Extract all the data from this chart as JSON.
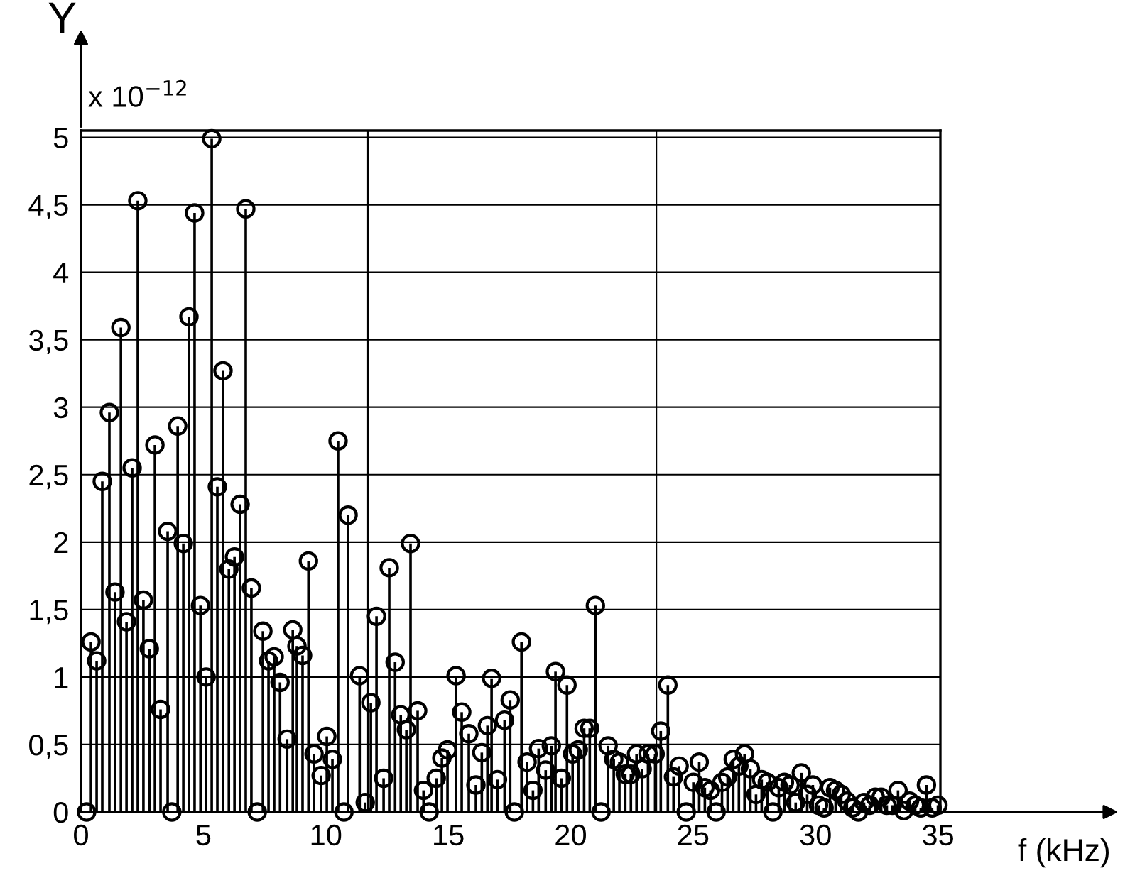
{
  "chart_data": {
    "type": "lollipop",
    "xlabel": "f (kHz)",
    "ylabel": "Y",
    "annotations": [
      "x 10$^{−12}$"
    ],
    "x": [
      0.23,
      0.41,
      0.64,
      0.87,
      1.16,
      1.39,
      1.63,
      1.86,
      2.09,
      2.32,
      2.55,
      2.79,
      3.02,
      3.25,
      3.54,
      3.71,
      3.95,
      4.18,
      4.41,
      4.64,
      4.88,
      5.11,
      5.34,
      5.57,
      5.8,
      6.04,
      6.27,
      6.5,
      6.73,
      6.96,
      7.2,
      7.43,
      7.66,
      7.89,
      8.13,
      8.42,
      8.65,
      8.82,
      9.05,
      9.29,
      9.52,
      9.81,
      10.04,
      10.27,
      10.5,
      10.74,
      10.91,
      11.38,
      11.61,
      11.84,
      12.07,
      12.36,
      12.59,
      12.83,
      13.06,
      13.29,
      13.46,
      13.75,
      13.99,
      14.22,
      14.51,
      14.74,
      14.97,
      15.32,
      15.55,
      15.84,
      16.13,
      16.37,
      16.6,
      16.77,
      17.01,
      17.3,
      17.53,
      17.7,
      17.99,
      18.22,
      18.46,
      18.69,
      18.98,
      19.21,
      19.38,
      19.62,
      19.85,
      20.08,
      20.31,
      20.55,
      20.78,
      21.01,
      21.24,
      21.53,
      21.76,
      21.99,
      22.23,
      22.46,
      22.69,
      22.92,
      23.16,
      23.45,
      23.68,
      23.97,
      24.2,
      24.43,
      24.72,
      25.01,
      25.25,
      25.48,
      25.71,
      25.94,
      26.18,
      26.41,
      26.64,
      26.87,
      27.1,
      27.34,
      27.57,
      27.8,
      28.03,
      28.26,
      28.5,
      28.73,
      28.96,
      29.19,
      29.42,
      29.66,
      29.89,
      30.12,
      30.35,
      30.59,
      30.82,
      31.05,
      31.28,
      31.52,
      31.75,
      31.98,
      32.21,
      32.44,
      32.68,
      32.91,
      33.14,
      33.37,
      33.61,
      33.84,
      34.07,
      34.3,
      34.53,
      34.76,
      35.0
    ],
    "values": [
      0,
      1.26,
      1.12,
      2.45,
      2.96,
      1.63,
      3.59,
      1.41,
      2.55,
      4.53,
      1.57,
      1.21,
      2.72,
      0.76,
      2.08,
      0,
      2.86,
      1.99,
      3.67,
      4.44,
      1.53,
      1.0,
      4.99,
      2.41,
      3.27,
      1.8,
      1.89,
      2.28,
      4.47,
      1.66,
      0,
      1.34,
      1.12,
      1.15,
      0.96,
      0.54,
      1.35,
      1.23,
      1.16,
      1.86,
      0.43,
      0.27,
      0.56,
      0.39,
      2.75,
      0,
      2.2,
      1.01,
      0.07,
      0.81,
      1.45,
      0.25,
      1.81,
      1.11,
      0.72,
      0.61,
      1.99,
      0.75,
      0.16,
      0,
      0.25,
      0.4,
      0.46,
      1.01,
      0.74,
      0.58,
      0.2,
      0.44,
      0.64,
      0.99,
      0.24,
      0.68,
      0.83,
      0,
      1.26,
      0.37,
      0.16,
      0.47,
      0.31,
      0.49,
      1.04,
      0.25,
      0.94,
      0.43,
      0.46,
      0.62,
      0.62,
      1.53,
      0,
      0.49,
      0.39,
      0.37,
      0.28,
      0.28,
      0.43,
      0.32,
      0.43,
      0.43,
      0.6,
      0.94,
      0.26,
      0.34,
      0,
      0.22,
      0.37,
      0.18,
      0.16,
      0,
      0.22,
      0.26,
      0.39,
      0.34,
      0.43,
      0.32,
      0.13,
      0.24,
      0.22,
      0,
      0.18,
      0.22,
      0.2,
      0.07,
      0.29,
      0.13,
      0.2,
      0.05,
      0.03,
      0.18,
      0.16,
      0.13,
      0.08,
      0.03,
      0,
      0.07,
      0.05,
      0.11,
      0.11,
      0.05,
      0.05,
      0.16,
      0.01,
      0.08,
      0.05,
      0.03,
      0.2,
      0.03,
      0.05
    ],
    "color": "#000000",
    "marker": "circle",
    "grid": "y",
    "xlim": [
      0,
      35.1
    ],
    "ylim": [
      0,
      5.05
    ],
    "xticks": [
      0,
      5,
      10,
      15,
      20,
      25,
      30,
      35
    ],
    "yticks": [
      0,
      {
        "value": 0.5,
        "label": "0,5"
      },
      1,
      {
        "value": 1.5,
        "label": "1,5"
      },
      2,
      {
        "value": 2.5,
        "label": "2,5"
      },
      3,
      {
        "value": 3.5,
        "label": "3,5"
      },
      4,
      {
        "value": 4.5,
        "label": "4,5"
      },
      5
    ],
    "ref_lines": [
      {
        "axis": "x",
        "value": 11.72,
        "color": "#000000"
      },
      {
        "axis": "x",
        "value": 23.5,
        "color": "#000000"
      }
    ]
  }
}
